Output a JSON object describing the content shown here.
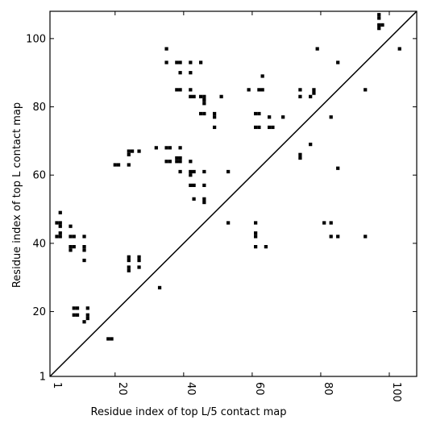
{
  "chart_data": {
    "type": "scatter",
    "title": "",
    "xlabel": "Residue index of top L/5 contact map",
    "ylabel": "Residue index of top L contact map",
    "xlim": [
      1,
      108
    ],
    "ylim": [
      1,
      108
    ],
    "xticks": [
      1,
      20,
      40,
      60,
      80,
      100
    ],
    "yticks": [
      1,
      20,
      40,
      60,
      80,
      100
    ],
    "x_tick_rotation": 90,
    "marker": "square",
    "marker_color": "#000000",
    "diagonal": true,
    "grid": false,
    "upper_points": [
      [
        97,
        106
      ],
      [
        97,
        107
      ],
      [
        97,
        104
      ],
      [
        97,
        103
      ],
      [
        98,
        104
      ],
      [
        103,
        97
      ],
      [
        35,
        97
      ],
      [
        79,
        97
      ],
      [
        35,
        93
      ],
      [
        38,
        93
      ],
      [
        39,
        93
      ],
      [
        42,
        93
      ],
      [
        45,
        93
      ],
      [
        85,
        93
      ],
      [
        39,
        90
      ],
      [
        42,
        90
      ],
      [
        63,
        89
      ],
      [
        38,
        85
      ],
      [
        39,
        85
      ],
      [
        42,
        85
      ],
      [
        59,
        85
      ],
      [
        62,
        85
      ],
      [
        63,
        85
      ],
      [
        74,
        85
      ],
      [
        78,
        85
      ],
      [
        93,
        85
      ],
      [
        42,
        83
      ],
      [
        43,
        83
      ],
      [
        45,
        83
      ],
      [
        46,
        83
      ],
      [
        51,
        83
      ],
      [
        74,
        83
      ],
      [
        77,
        83
      ],
      [
        78,
        84
      ],
      [
        46,
        82
      ],
      [
        46,
        81
      ],
      [
        45,
        78
      ],
      [
        46,
        78
      ],
      [
        49,
        78
      ],
      [
        61,
        78
      ],
      [
        62,
        78
      ],
      [
        49,
        77
      ],
      [
        65,
        77
      ],
      [
        69,
        77
      ],
      [
        83,
        77
      ],
      [
        49,
        74
      ],
      [
        61,
        74
      ],
      [
        62,
        74
      ],
      [
        65,
        74
      ],
      [
        66,
        74
      ],
      [
        77,
        69
      ],
      [
        32,
        68
      ],
      [
        35,
        68
      ],
      [
        36,
        68
      ],
      [
        39,
        68
      ],
      [
        24,
        67
      ],
      [
        25,
        67
      ],
      [
        27,
        67
      ],
      [
        24,
        66
      ],
      [
        74,
        66
      ],
      [
        74,
        65
      ],
      [
        38,
        65
      ],
      [
        39,
        65
      ],
      [
        35,
        64
      ],
      [
        36,
        64
      ],
      [
        38,
        64
      ],
      [
        39,
        64
      ],
      [
        42,
        64
      ],
      [
        20,
        63
      ],
      [
        21,
        63
      ],
      [
        24,
        63
      ],
      [
        85,
        62
      ],
      [
        39,
        61
      ],
      [
        42,
        61
      ],
      [
        43,
        61
      ],
      [
        46,
        61
      ],
      [
        53,
        61
      ],
      [
        42,
        60
      ],
      [
        42,
        57
      ],
      [
        43,
        57
      ],
      [
        46,
        57
      ],
      [
        43,
        53
      ],
      [
        46,
        53
      ],
      [
        46,
        52
      ]
    ],
    "lower_points": [
      [
        4,
        49
      ],
      [
        3,
        46
      ],
      [
        4,
        46
      ],
      [
        4,
        45
      ],
      [
        7,
        45
      ],
      [
        3,
        42
      ],
      [
        4,
        43
      ],
      [
        4,
        42
      ],
      [
        7,
        42
      ],
      [
        8,
        42
      ],
      [
        11,
        42
      ],
      [
        7,
        39
      ],
      [
        8,
        39
      ],
      [
        11,
        39
      ],
      [
        7,
        38
      ],
      [
        11,
        38
      ],
      [
        11,
        35
      ],
      [
        53,
        46
      ],
      [
        61,
        46
      ],
      [
        81,
        46
      ],
      [
        83,
        46
      ],
      [
        61,
        43
      ],
      [
        61,
        42
      ],
      [
        83,
        42
      ],
      [
        85,
        42
      ],
      [
        93,
        42
      ],
      [
        61,
        39
      ],
      [
        64,
        39
      ],
      [
        24,
        36
      ],
      [
        27,
        36
      ],
      [
        24,
        35
      ],
      [
        27,
        35
      ],
      [
        24,
        33
      ],
      [
        27,
        33
      ],
      [
        24,
        32
      ],
      [
        33,
        27
      ],
      [
        8,
        21
      ],
      [
        9,
        21
      ],
      [
        12,
        21
      ],
      [
        8,
        19
      ],
      [
        9,
        19
      ],
      [
        12,
        19
      ],
      [
        12,
        18
      ],
      [
        11,
        17
      ],
      [
        18,
        12
      ],
      [
        19,
        12
      ]
    ]
  }
}
